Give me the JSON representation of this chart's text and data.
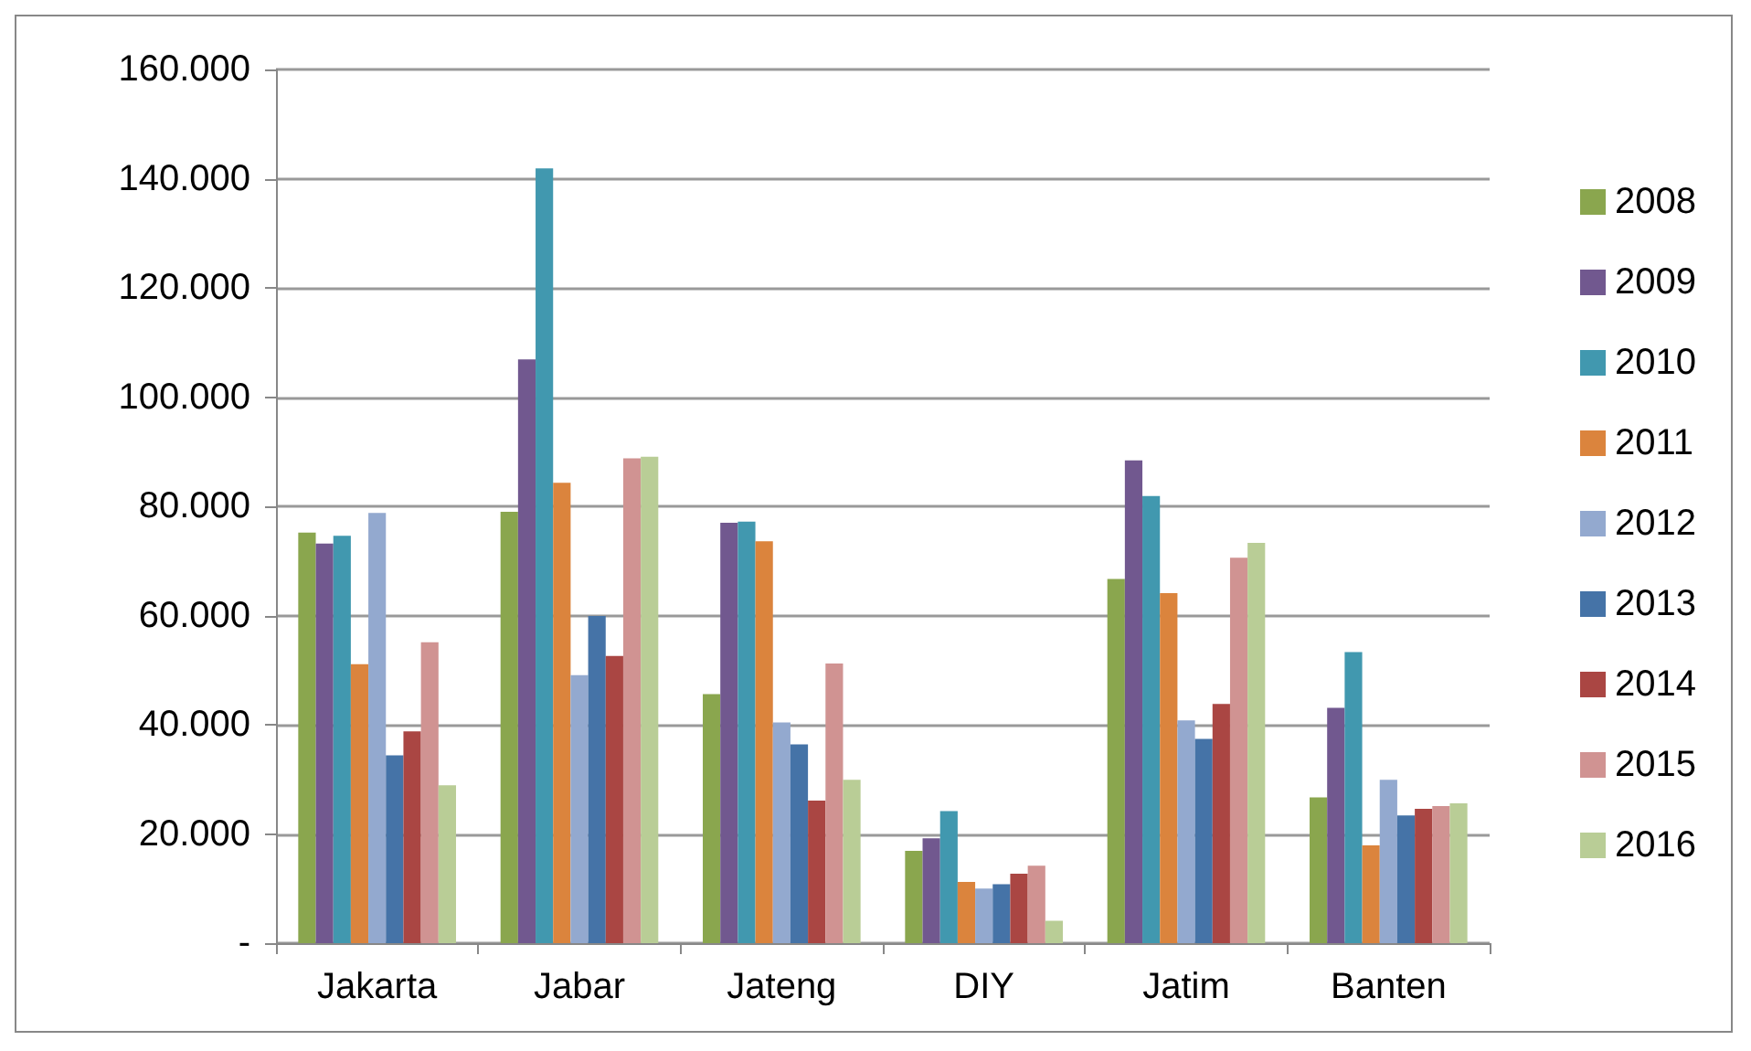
{
  "chart_data": {
    "type": "bar",
    "categories": [
      "Jakarta",
      "Jabar",
      "Jateng",
      "DIY",
      "Jatim",
      "Banten"
    ],
    "series": [
      {
        "name": "2008",
        "color": "#8aa64e",
        "values": [
          75200,
          79000,
          45600,
          16900,
          66700,
          26700
        ]
      },
      {
        "name": "2009",
        "color": "#71588f",
        "values": [
          73200,
          106900,
          77000,
          19200,
          88400,
          43100
        ]
      },
      {
        "name": "2010",
        "color": "#4198af",
        "values": [
          74600,
          141900,
          77200,
          24200,
          81900,
          53300
        ]
      },
      {
        "name": "2011",
        "color": "#db843d",
        "values": [
          51100,
          84300,
          73600,
          11200,
          64100,
          17900
        ]
      },
      {
        "name": "2012",
        "color": "#93a9cf",
        "values": [
          78800,
          49100,
          40400,
          10000,
          40800,
          29900
        ]
      },
      {
        "name": "2013",
        "color": "#4573a7",
        "values": [
          34400,
          59900,
          36400,
          10800,
          37400,
          23400
        ]
      },
      {
        "name": "2014",
        "color": "#aa4643",
        "values": [
          38800,
          52600,
          26100,
          12700,
          43800,
          24600
        ]
      },
      {
        "name": "2015",
        "color": "#d09392",
        "values": [
          55100,
          88800,
          51200,
          14200,
          70600,
          25100
        ]
      },
      {
        "name": "2016",
        "color": "#b9cd96",
        "values": [
          28900,
          89100,
          29900,
          4100,
          73300,
          25600
        ]
      }
    ],
    "ylim": [
      0,
      160000
    ],
    "yticks": [
      {
        "value": 0,
        "label": "-"
      },
      {
        "value": 20000,
        "label": "20.000"
      },
      {
        "value": 40000,
        "label": "40.000"
      },
      {
        "value": 60000,
        "label": "60.000"
      },
      {
        "value": 80000,
        "label": "80.000"
      },
      {
        "value": 100000,
        "label": "100.000"
      },
      {
        "value": 120000,
        "label": "120.000"
      },
      {
        "value": 140000,
        "label": "140.000"
      },
      {
        "value": 160000,
        "label": "160.000"
      }
    ],
    "grid": "y",
    "legend": "right"
  }
}
